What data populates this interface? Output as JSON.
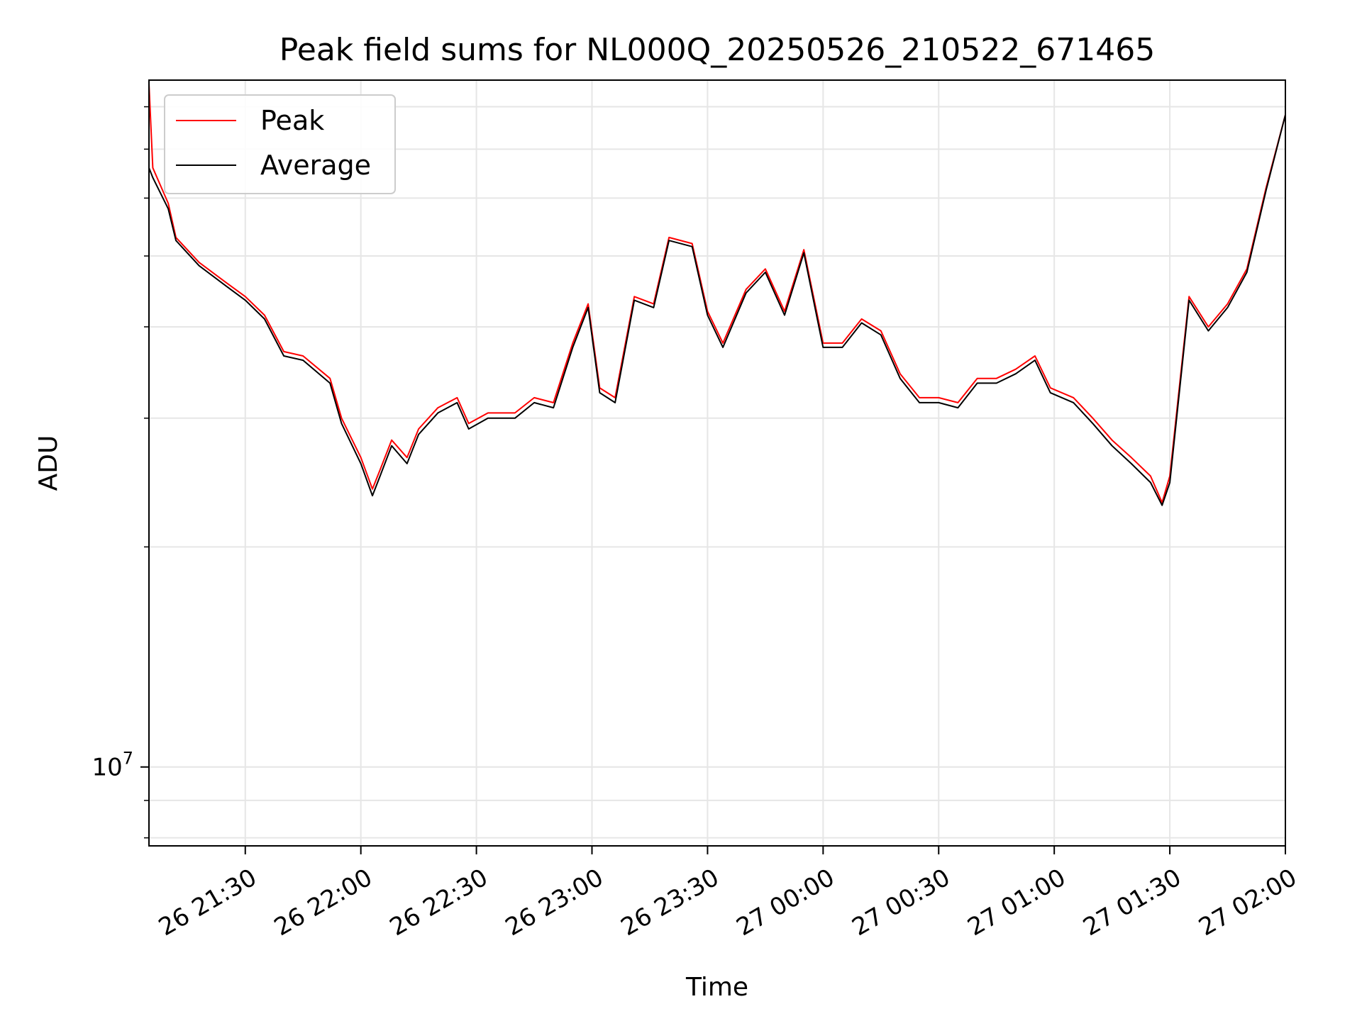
{
  "chart_data": {
    "type": "line",
    "title": "Peak field sums for NL000Q_20250526_210522_671465",
    "xlabel": "Time",
    "ylabel": "ADU",
    "y_scale": "log",
    "y_tick_labels": [
      {
        "value": 10000000,
        "base": "10",
        "exp": "7"
      }
    ],
    "y_minor_ticks": [
      8000000,
      9000000,
      20000000,
      30000000,
      40000000,
      50000000,
      60000000,
      70000000,
      80000000
    ],
    "xlim": [
      "2025-05-26 21:05",
      "2025-05-27 02:00"
    ],
    "ylim": [
      7800000,
      87000000
    ],
    "x_tick_labels": [
      "26 21:30",
      "26 22:00",
      "26 22:30",
      "26 23:00",
      "26 23:30",
      "27 00:00",
      "27 00:30",
      "27 01:00",
      "27 01:30",
      "27 02:00"
    ],
    "x_ticks": [
      "2025-05-26 21:30",
      "2025-05-26 22:00",
      "2025-05-26 22:30",
      "2025-05-26 23:00",
      "2025-05-26 23:30",
      "2025-05-27 00:00",
      "2025-05-27 00:30",
      "2025-05-27 01:00",
      "2025-05-27 01:30",
      "2025-05-27 02:00"
    ],
    "grid": true,
    "legend_position": "top-left",
    "series": [
      {
        "name": "Peak",
        "color": "#ff0000",
        "x": [
          "2025-05-26 21:05",
          "2025-05-26 21:06",
          "2025-05-26 21:10",
          "2025-05-26 21:12",
          "2025-05-26 21:18",
          "2025-05-26 21:25",
          "2025-05-26 21:30",
          "2025-05-26 21:35",
          "2025-05-26 21:40",
          "2025-05-26 21:45",
          "2025-05-26 21:52",
          "2025-05-26 21:55",
          "2025-05-26 22:00",
          "2025-05-26 22:03",
          "2025-05-26 22:05",
          "2025-05-26 22:08",
          "2025-05-26 22:12",
          "2025-05-26 22:15",
          "2025-05-26 22:20",
          "2025-05-26 22:25",
          "2025-05-26 22:28",
          "2025-05-26 22:33",
          "2025-05-26 22:40",
          "2025-05-26 22:45",
          "2025-05-26 22:50",
          "2025-05-26 22:55",
          "2025-05-26 22:59",
          "2025-05-26 23:02",
          "2025-05-26 23:06",
          "2025-05-26 23:11",
          "2025-05-26 23:16",
          "2025-05-26 23:20",
          "2025-05-26 23:26",
          "2025-05-26 23:30",
          "2025-05-26 23:34",
          "2025-05-26 23:40",
          "2025-05-26 23:45",
          "2025-05-26 23:50",
          "2025-05-26 23:55",
          "2025-05-27 00:00",
          "2025-05-27 00:05",
          "2025-05-27 00:10",
          "2025-05-27 00:15",
          "2025-05-27 00:20",
          "2025-05-27 00:25",
          "2025-05-27 00:30",
          "2025-05-27 00:35",
          "2025-05-27 00:40",
          "2025-05-27 00:45",
          "2025-05-27 00:50",
          "2025-05-27 00:55",
          "2025-05-27 00:59",
          "2025-05-27 01:05",
          "2025-05-27 01:10",
          "2025-05-27 01:15",
          "2025-05-27 01:20",
          "2025-05-27 01:25",
          "2025-05-27 01:28",
          "2025-05-27 01:30",
          "2025-05-27 01:35",
          "2025-05-27 01:40",
          "2025-05-27 01:45",
          "2025-05-27 01:50",
          "2025-05-27 01:55",
          "2025-05-27 02:00"
        ],
        "y": [
          86000000,
          66000000,
          59000000,
          53000000,
          49000000,
          46000000,
          44000000,
          41500000,
          37000000,
          36500000,
          34000000,
          30000000,
          26500000,
          24000000,
          25500000,
          28000000,
          26500000,
          29000000,
          31000000,
          32000000,
          29500000,
          30500000,
          30500000,
          32000000,
          31500000,
          38000000,
          43000000,
          33000000,
          32000000,
          44000000,
          43000000,
          53000000,
          52000000,
          42000000,
          38000000,
          45000000,
          48000000,
          42000000,
          51000000,
          38000000,
          38000000,
          41000000,
          39500000,
          34500000,
          32000000,
          32000000,
          31500000,
          34000000,
          34000000,
          35000000,
          36500000,
          33000000,
          32000000,
          30000000,
          28000000,
          26500000,
          25000000,
          23000000,
          25000000,
          44000000,
          40000000,
          43000000,
          48000000,
          62000000,
          78000000
        ]
      },
      {
        "name": "Average",
        "color": "#000000",
        "x": [
          "2025-05-26 21:05",
          "2025-05-26 21:06",
          "2025-05-26 21:10",
          "2025-05-26 21:12",
          "2025-05-26 21:18",
          "2025-05-26 21:25",
          "2025-05-26 21:30",
          "2025-05-26 21:35",
          "2025-05-26 21:40",
          "2025-05-26 21:45",
          "2025-05-26 21:52",
          "2025-05-26 21:55",
          "2025-05-26 22:00",
          "2025-05-26 22:03",
          "2025-05-26 22:05",
          "2025-05-26 22:08",
          "2025-05-26 22:12",
          "2025-05-26 22:15",
          "2025-05-26 22:20",
          "2025-05-26 22:25",
          "2025-05-26 22:28",
          "2025-05-26 22:33",
          "2025-05-26 22:40",
          "2025-05-26 22:45",
          "2025-05-26 22:50",
          "2025-05-26 22:55",
          "2025-05-26 22:59",
          "2025-05-26 23:02",
          "2025-05-26 23:06",
          "2025-05-26 23:11",
          "2025-05-26 23:16",
          "2025-05-26 23:20",
          "2025-05-26 23:26",
          "2025-05-26 23:30",
          "2025-05-26 23:34",
          "2025-05-26 23:40",
          "2025-05-26 23:45",
          "2025-05-26 23:50",
          "2025-05-26 23:55",
          "2025-05-27 00:00",
          "2025-05-27 00:05",
          "2025-05-27 00:10",
          "2025-05-27 00:15",
          "2025-05-27 00:20",
          "2025-05-27 00:25",
          "2025-05-27 00:30",
          "2025-05-27 00:35",
          "2025-05-27 00:40",
          "2025-05-27 00:45",
          "2025-05-27 00:50",
          "2025-05-27 00:55",
          "2025-05-27 00:59",
          "2025-05-27 01:05",
          "2025-05-27 01:10",
          "2025-05-27 01:15",
          "2025-05-27 01:20",
          "2025-05-27 01:25",
          "2025-05-27 01:28",
          "2025-05-27 01:30",
          "2025-05-27 01:35",
          "2025-05-27 01:40",
          "2025-05-27 01:45",
          "2025-05-27 01:50",
          "2025-05-27 01:55",
          "2025-05-27 02:00"
        ],
        "y": [
          66000000,
          64000000,
          58000000,
          52500000,
          48500000,
          45500000,
          43500000,
          41000000,
          36500000,
          36000000,
          33500000,
          29500000,
          26000000,
          23500000,
          25000000,
          27500000,
          26000000,
          28500000,
          30500000,
          31500000,
          29000000,
          30000000,
          30000000,
          31500000,
          31000000,
          37500000,
          42500000,
          32500000,
          31500000,
          43500000,
          42500000,
          52500000,
          51500000,
          41500000,
          37500000,
          44500000,
          47500000,
          41500000,
          50500000,
          37500000,
          37500000,
          40500000,
          39000000,
          34000000,
          31500000,
          31500000,
          31000000,
          33500000,
          33500000,
          34500000,
          36000000,
          32500000,
          31500000,
          29500000,
          27500000,
          26000000,
          24500000,
          22800000,
          24500000,
          43500000,
          39500000,
          42500000,
          47500000,
          61500000,
          78000000
        ]
      }
    ]
  }
}
